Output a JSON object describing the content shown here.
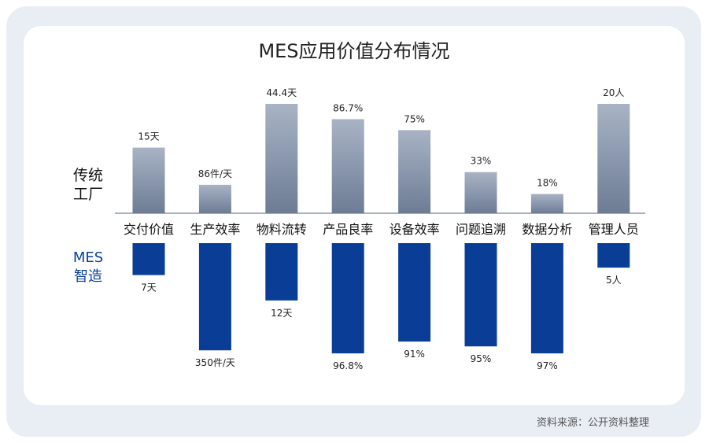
{
  "chart_data": {
    "type": "bar",
    "title": "MES应用价值分布情况",
    "categories": [
      "交付价值",
      "生产效率",
      "物料流转",
      "产品良率",
      "设备效率",
      "问题追溯",
      "数据分析",
      "管理人员"
    ],
    "series": [
      {
        "name": "传统工厂",
        "label_lines": [
          "传统",
          "工厂"
        ],
        "color": "#8f9db2",
        "relative_heights": [
          15,
          6.5,
          25,
          21.5,
          19,
          9.4,
          4.4,
          25
        ],
        "labels": [
          "15天",
          "86件/天",
          "44.4天",
          "86.7%",
          "75%",
          "33%",
          "18%",
          "20人"
        ]
      },
      {
        "name": "MES智造",
        "label_lines": [
          "MES",
          "智造"
        ],
        "color": "#0a3e96",
        "relative_heights": [
          7.3,
          24.5,
          13.1,
          25.2,
          22.5,
          23.6,
          25.2,
          5.6
        ],
        "labels": [
          "7天",
          "350件/天",
          "12天",
          "96.8%",
          "91%",
          "95%",
          "97%",
          "5人"
        ]
      }
    ],
    "source": "资料来源：公开资料整理"
  }
}
